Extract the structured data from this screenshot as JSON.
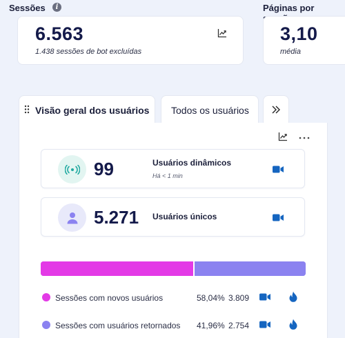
{
  "sessions": {
    "title": "Sessões",
    "value": "6.563",
    "subtitle": "1.438 sessões de bot excluídas"
  },
  "pages_per_session": {
    "title": "Páginas por sessão",
    "value": "3,10",
    "subtitle": "média"
  },
  "tabs": [
    {
      "label": "Visão geral dos usuários",
      "active": true
    },
    {
      "label": "Todos os usuários",
      "active": false
    }
  ],
  "metrics": {
    "dynamic": {
      "value": "99",
      "label": "Usuários dinâmicos",
      "sub": "Há < 1 min"
    },
    "unique": {
      "value": "5.271",
      "label": "Usuários únicos"
    }
  },
  "breakdown": {
    "new_fraction": 0.5804,
    "rows": [
      {
        "label": "Sessões com novos usuários",
        "percent": "58,04%",
        "count": "3.809",
        "color": "#e33ae6"
      },
      {
        "label": "Sessões com usuários retornados",
        "percent": "41,96%",
        "count": "2.754",
        "color": "#8b82f0"
      }
    ]
  },
  "colors": {
    "accent_blue": "#1565c0",
    "new_users": "#e33ae6",
    "returning_users": "#8b82f0",
    "live_teal": "#1fa9a0"
  },
  "icons": [
    "info-icon",
    "trend-icon",
    "drag-handle-icon",
    "chevron-double-right-icon",
    "more-icon",
    "broadcast-icon",
    "person-icon",
    "video-icon",
    "flame-icon"
  ]
}
